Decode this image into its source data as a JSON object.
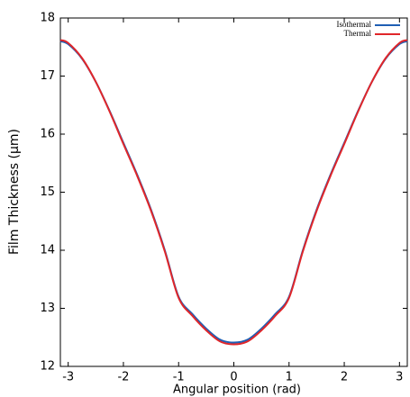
{
  "chart_data": {
    "type": "line",
    "x_label": "Angular position (rad)",
    "y_label": "Film Thickness (μm)",
    "x": [
      -3.1416,
      -3,
      -2.75,
      -2.5,
      -2.25,
      -2,
      -1.75,
      -1.5,
      -1.25,
      -1,
      -0.75,
      -0.5,
      -0.25,
      0,
      0.25,
      0.5,
      0.75,
      1,
      1.25,
      1.5,
      1.75,
      2,
      2.25,
      2.5,
      2.75,
      3,
      3.1416
    ],
    "series": [
      {
        "name": "Isothermal",
        "color": "#1f5fb4",
        "values": [
          17.6,
          17.55,
          17.3,
          16.9,
          16.4,
          15.85,
          15.3,
          14.7,
          14.0,
          13.2,
          12.9,
          12.65,
          12.46,
          12.41,
          12.46,
          12.65,
          12.9,
          13.2,
          14.0,
          14.7,
          15.3,
          15.85,
          16.4,
          16.9,
          17.3,
          17.55,
          17.6
        ]
      },
      {
        "name": "Thermal",
        "color": "#e0262a",
        "values": [
          17.62,
          17.57,
          17.31,
          16.9,
          16.39,
          15.83,
          15.28,
          14.68,
          13.98,
          13.18,
          12.87,
          12.62,
          12.43,
          12.38,
          12.43,
          12.62,
          12.87,
          13.18,
          13.98,
          14.68,
          15.28,
          15.83,
          16.39,
          16.9,
          17.31,
          17.57,
          17.62
        ]
      }
    ],
    "xlim": [
      -3.1416,
      3.1416
    ],
    "xticks": [
      -3,
      -2,
      -1,
      0,
      1,
      2,
      3
    ],
    "ylim": [
      12,
      18
    ],
    "yticks": [
      12,
      13,
      14,
      15,
      16,
      17,
      18
    ],
    "legend": "upper right",
    "grid": false
  }
}
